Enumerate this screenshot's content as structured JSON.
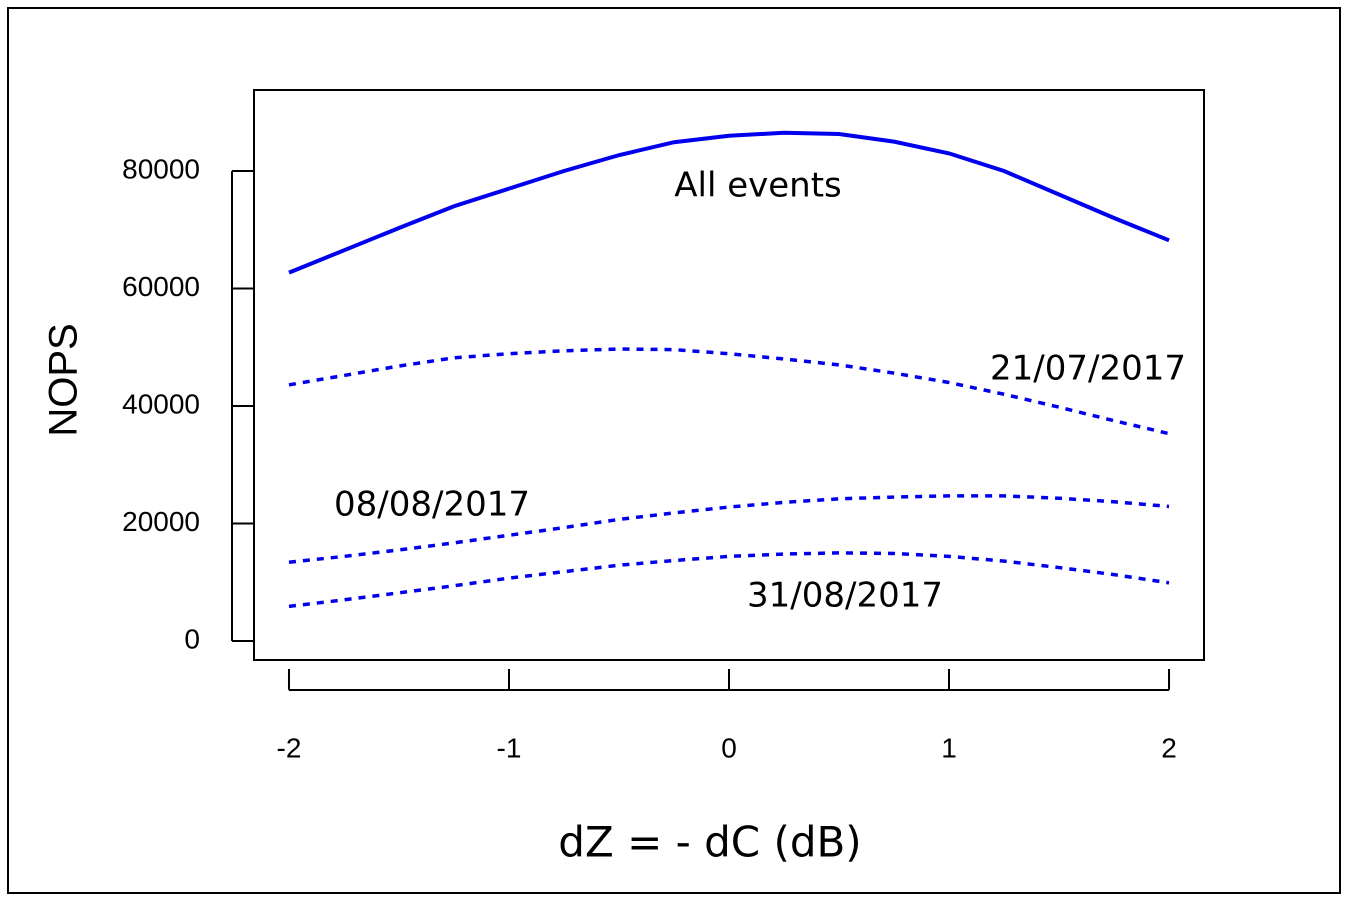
{
  "chart_data": {
    "type": "line",
    "x_label": "dZ = - dC (dB)",
    "y_label": "NOPS",
    "x": [
      -2,
      -1.75,
      -1.5,
      -1.25,
      -1,
      -0.75,
      -0.5,
      -0.25,
      0,
      0.25,
      0.5,
      0.75,
      1,
      1.25,
      1.5,
      1.75,
      2
    ],
    "series": [
      {
        "name": "All events",
        "color": "#0000ee",
        "dash": "solid",
        "values": [
          62700,
          66500,
          70300,
          74000,
          77000,
          80000,
          82700,
          84900,
          86000,
          86500,
          86300,
          85000,
          83000,
          80000,
          76000,
          72000,
          68200
        ]
      },
      {
        "name": "21/07/2017",
        "color": "#0000ee",
        "dash": "dotted",
        "values": [
          43600,
          45200,
          46800,
          48200,
          48900,
          49400,
          49700,
          49600,
          48900,
          48000,
          47000,
          45600,
          44000,
          42000,
          39800,
          37500,
          35300
        ]
      },
      {
        "name": "08/08/2017",
        "color": "#0000ee",
        "dash": "dotted",
        "values": [
          13400,
          14400,
          15500,
          16700,
          18000,
          19300,
          20700,
          21800,
          22800,
          23600,
          24200,
          24500,
          24700,
          24700,
          24300,
          23700,
          22900
        ]
      },
      {
        "name": "31/08/2017",
        "color": "#0000ee",
        "dash": "dotted",
        "values": [
          5900,
          7000,
          8200,
          9400,
          10700,
          11800,
          12900,
          13700,
          14400,
          14800,
          15000,
          14900,
          14400,
          13600,
          12500,
          11300,
          9900
        ]
      }
    ],
    "xlim": [
      -2.159,
      2.159
    ],
    "xticks": [
      -2,
      -1,
      0,
      1,
      2
    ],
    "ylim": [
      -3234,
      93787
    ],
    "yticks": [
      0,
      20000,
      40000,
      60000,
      80000
    ]
  }
}
